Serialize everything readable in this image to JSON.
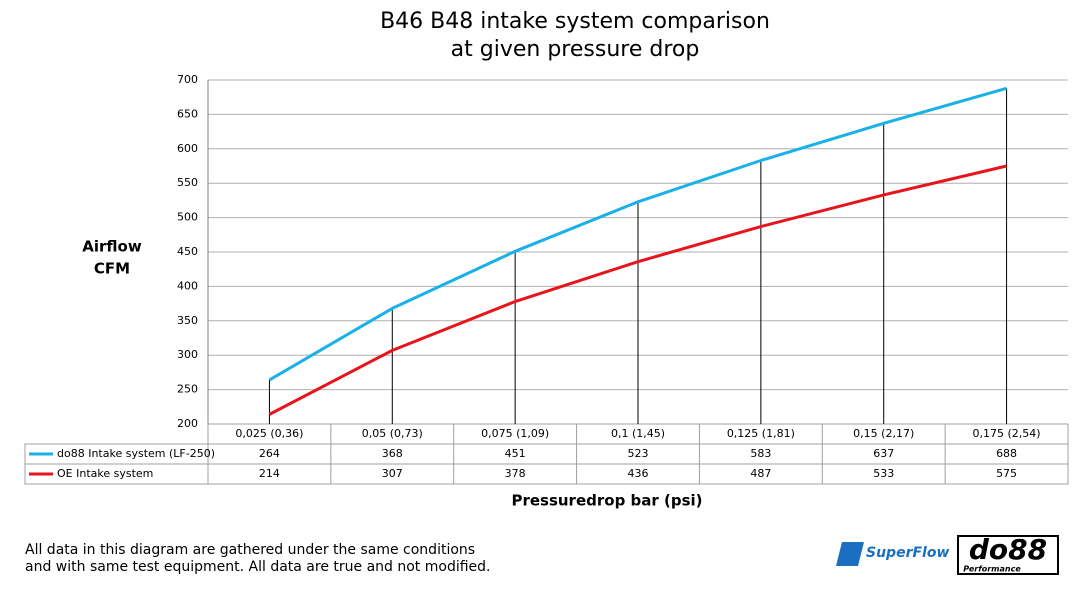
{
  "chart_data": {
    "type": "line",
    "title": [
      "B46 B48 intake system comparison",
      "at given pressure drop"
    ],
    "y_label": [
      "Airflow",
      "CFM"
    ],
    "x_label": "Pressuredrop bar (psi)",
    "categories": [
      "0,025 (0,36)",
      "0,05 (0,73)",
      "0,075 (1,09)",
      "0,1 (1,45)",
      "0,125 (1,81)",
      "0,15 (2,17)",
      "0,175 (2,54)"
    ],
    "series": [
      {
        "name": "do88 Intake system (LF-250)",
        "color": "#1ab0e8",
        "values": [
          264,
          368,
          451,
          523,
          583,
          637,
          688
        ]
      },
      {
        "name": "OE Intake system",
        "color": "#e8141c",
        "values": [
          214,
          307,
          378,
          436,
          487,
          533,
          575
        ]
      }
    ],
    "ylim": [
      200,
      700
    ],
    "yticks": [
      200,
      250,
      300,
      350,
      400,
      450,
      500,
      550,
      600,
      650,
      700
    ],
    "grid": true
  },
  "footnote": [
    "All data in this diagram are gathered under the same conditions",
    "and with same test equipment. All data are true and not modified."
  ],
  "logos": {
    "superflow": "SuperFlow",
    "do88": "do88",
    "do88_sub": "Performance"
  }
}
